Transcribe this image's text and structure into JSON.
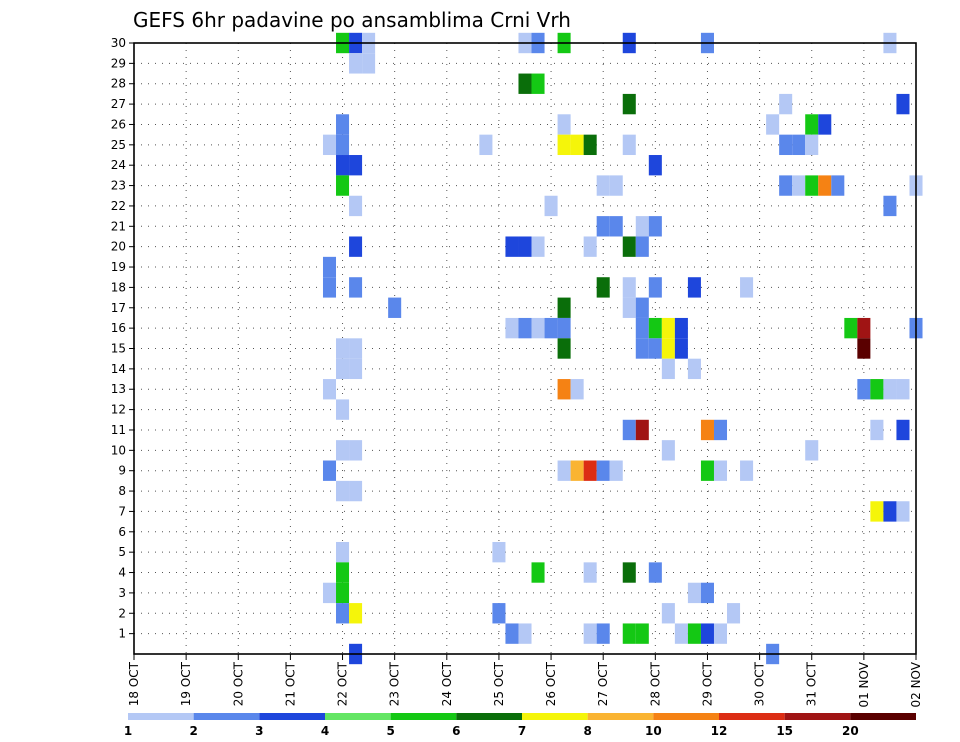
{
  "chart_data": {
    "type": "heatmap",
    "title": "GEFS 6hr padavine po ansamblima Crni Vrh",
    "xlabel": "",
    "ylabel": "",
    "x_ticks": [
      "18 OCT",
      "19 OCT",
      "20 OCT",
      "21 OCT",
      "22 OCT",
      "23 OCT",
      "24 OCT",
      "25 OCT",
      "26 OCT",
      "27 OCT",
      "28 OCT",
      "29 OCT",
      "30 OCT",
      "31 OCT",
      "01 NOV",
      "02 NOV"
    ],
    "x_range": [
      0,
      60
    ],
    "x_unit": "6-hour steps from 18 OCT 00Z",
    "y_ticks": [
      "1",
      "2",
      "3",
      "4",
      "5",
      "6",
      "7",
      "8",
      "9",
      "10",
      "11",
      "12",
      "13",
      "14",
      "15",
      "16",
      "17",
      "18",
      "19",
      "20",
      "21",
      "22",
      "23",
      "24",
      "25",
      "26",
      "27",
      "28",
      "29",
      "30"
    ],
    "y_range": [
      0,
      30
    ],
    "grid": true,
    "colorbar": {
      "labels": [
        "1",
        "2",
        "3",
        "4",
        "5",
        "6",
        "7",
        "8",
        "10",
        "12",
        "15",
        "20"
      ],
      "colors": [
        "#b4c8f5",
        "#5a87eb",
        "#1e46dc",
        "#64e664",
        "#14c814",
        "#0a6e0a",
        "#f5f50a",
        "#fab432",
        "#f58214",
        "#dc2d14",
        "#a01414",
        "#5a0000"
      ]
    },
    "cells": [
      [
        16,
        30,
        5
      ],
      [
        17,
        30,
        3
      ],
      [
        18,
        30,
        1
      ],
      [
        30,
        30,
        1
      ],
      [
        31,
        30,
        2
      ],
      [
        33,
        30,
        5
      ],
      [
        38,
        30,
        3
      ],
      [
        44,
        30,
        2
      ],
      [
        58,
        30,
        1
      ],
      [
        17,
        29,
        1
      ],
      [
        18,
        29,
        1
      ],
      [
        30,
        28,
        6
      ],
      [
        31,
        28,
        5
      ],
      [
        38,
        27,
        6
      ],
      [
        50,
        27,
        1
      ],
      [
        59,
        27,
        3
      ],
      [
        16,
        26,
        2
      ],
      [
        33,
        26,
        1
      ],
      [
        49,
        26,
        1
      ],
      [
        52,
        26,
        5
      ],
      [
        53,
        26,
        3
      ],
      [
        15,
        25,
        1
      ],
      [
        16,
        25,
        2
      ],
      [
        27,
        25,
        1
      ],
      [
        33,
        25,
        7
      ],
      [
        34,
        25,
        7
      ],
      [
        35,
        25,
        6
      ],
      [
        38,
        25,
        1
      ],
      [
        50,
        25,
        2
      ],
      [
        51,
        25,
        2
      ],
      [
        52,
        25,
        1
      ],
      [
        16,
        24,
        3
      ],
      [
        17,
        24,
        3
      ],
      [
        40,
        24,
        3
      ],
      [
        16,
        23,
        5
      ],
      [
        36,
        23,
        1
      ],
      [
        37,
        23,
        1
      ],
      [
        50,
        23,
        2
      ],
      [
        51,
        23,
        1
      ],
      [
        52,
        23,
        5
      ],
      [
        53,
        23,
        10
      ],
      [
        54,
        23,
        2
      ],
      [
        60,
        23,
        1
      ],
      [
        17,
        22,
        1
      ],
      [
        32,
        22,
        1
      ],
      [
        58,
        22,
        2
      ],
      [
        36,
        21,
        2
      ],
      [
        37,
        21,
        2
      ],
      [
        39,
        21,
        1
      ],
      [
        40,
        21,
        2
      ],
      [
        17,
        20,
        3
      ],
      [
        29,
        20,
        3
      ],
      [
        30,
        20,
        3
      ],
      [
        31,
        20,
        1
      ],
      [
        35,
        20,
        1
      ],
      [
        38,
        20,
        6
      ],
      [
        39,
        20,
        2
      ],
      [
        15,
        19,
        2
      ],
      [
        15,
        18,
        2
      ],
      [
        17,
        18,
        2
      ],
      [
        36,
        18,
        6
      ],
      [
        38,
        18,
        1
      ],
      [
        40,
        18,
        2
      ],
      [
        43,
        18,
        3
      ],
      [
        47,
        18,
        1
      ],
      [
        20,
        17,
        2
      ],
      [
        33,
        17,
        6
      ],
      [
        38,
        17,
        1
      ],
      [
        39,
        17,
        2
      ],
      [
        29,
        16,
        1
      ],
      [
        30,
        16,
        2
      ],
      [
        31,
        16,
        1
      ],
      [
        32,
        16,
        2
      ],
      [
        33,
        16,
        2
      ],
      [
        39,
        16,
        2
      ],
      [
        40,
        16,
        5
      ],
      [
        41,
        16,
        7
      ],
      [
        42,
        16,
        3
      ],
      [
        55,
        16,
        5
      ],
      [
        56,
        16,
        15
      ],
      [
        60,
        16,
        2
      ],
      [
        17,
        15,
        1
      ],
      [
        16,
        15,
        1
      ],
      [
        33,
        15,
        6
      ],
      [
        39,
        15,
        2
      ],
      [
        40,
        15,
        2
      ],
      [
        41,
        15,
        7
      ],
      [
        42,
        15,
        3
      ],
      [
        56,
        15,
        20
      ],
      [
        16,
        14,
        1
      ],
      [
        17,
        14,
        1
      ],
      [
        41,
        14,
        1
      ],
      [
        43,
        14,
        1
      ],
      [
        15,
        13,
        1
      ],
      [
        33,
        13,
        10
      ],
      [
        34,
        13,
        1
      ],
      [
        56,
        13,
        2
      ],
      [
        57,
        13,
        5
      ],
      [
        58,
        13,
        1
      ],
      [
        59,
        13,
        1
      ],
      [
        16,
        12,
        1
      ],
      [
        38,
        11,
        2
      ],
      [
        39,
        11,
        15
      ],
      [
        44,
        11,
        10
      ],
      [
        45,
        11,
        2
      ],
      [
        57,
        11,
        1
      ],
      [
        59,
        11,
        3
      ],
      [
        16,
        10,
        1
      ],
      [
        17,
        10,
        1
      ],
      [
        41,
        10,
        1
      ],
      [
        52,
        10,
        1
      ],
      [
        15,
        9,
        2
      ],
      [
        33,
        9,
        1
      ],
      [
        34,
        9,
        8
      ],
      [
        35,
        9,
        12
      ],
      [
        36,
        9,
        2
      ],
      [
        37,
        9,
        1
      ],
      [
        44,
        9,
        5
      ],
      [
        45,
        9,
        1
      ],
      [
        47,
        9,
        1
      ],
      [
        16,
        8,
        1
      ],
      [
        17,
        8,
        1
      ],
      [
        57,
        7,
        7
      ],
      [
        58,
        7,
        3
      ],
      [
        59,
        7,
        1
      ],
      [
        16,
        5,
        1
      ],
      [
        28,
        5,
        1
      ],
      [
        16,
        4,
        5
      ],
      [
        31,
        4,
        5
      ],
      [
        35,
        4,
        1
      ],
      [
        38,
        4,
        6
      ],
      [
        40,
        4,
        2
      ],
      [
        15,
        3,
        1
      ],
      [
        16,
        3,
        5
      ],
      [
        43,
        3,
        1
      ],
      [
        44,
        3,
        2
      ],
      [
        16,
        2,
        2
      ],
      [
        17,
        2,
        7
      ],
      [
        28,
        2,
        2
      ],
      [
        41,
        2,
        1
      ],
      [
        46,
        2,
        1
      ],
      [
        29,
        1,
        2
      ],
      [
        30,
        1,
        1
      ],
      [
        35,
        1,
        1
      ],
      [
        36,
        1,
        2
      ],
      [
        38,
        1,
        5
      ],
      [
        39,
        1,
        5
      ],
      [
        42,
        1,
        1
      ],
      [
        43,
        1,
        5
      ],
      [
        44,
        1,
        3
      ],
      [
        45,
        1,
        1
      ],
      [
        17,
        0,
        3
      ],
      [
        49,
        0,
        2
      ]
    ]
  }
}
